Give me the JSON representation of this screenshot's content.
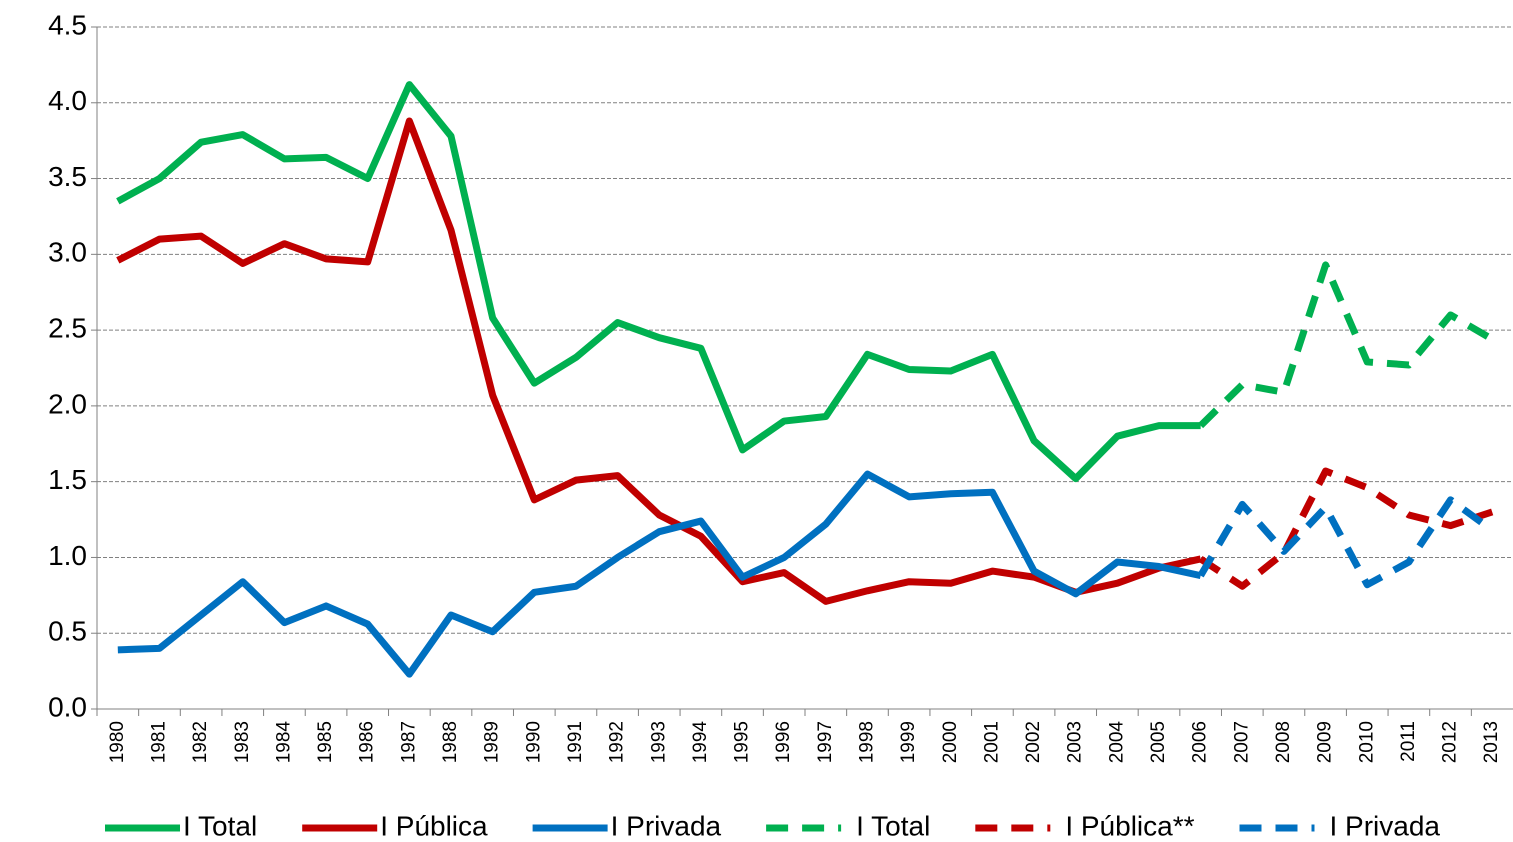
{
  "chart_data": {
    "type": "line",
    "categories": [
      "1980",
      "1981",
      "1982",
      "1983",
      "1984",
      "1985",
      "1986",
      "1987",
      "1988",
      "1989",
      "1990",
      "1991",
      "1992",
      "1993",
      "1994",
      "1995",
      "1996",
      "1997",
      "1998",
      "1999",
      "2000",
      "2001",
      "2002",
      "2003",
      "2004",
      "2005",
      "2006",
      "2007",
      "2008",
      "2009",
      "2010",
      "2011",
      "2012",
      "2013"
    ],
    "series": [
      {
        "name": "I Total",
        "color": "#00b050",
        "style": "solid",
        "values": [
          3.35,
          3.5,
          3.74,
          3.79,
          3.63,
          3.64,
          3.5,
          4.12,
          3.78,
          2.58,
          2.15,
          2.32,
          2.55,
          2.45,
          2.38,
          1.71,
          1.9,
          1.93,
          2.34,
          2.24,
          2.23,
          2.34,
          1.77,
          1.52,
          1.8,
          1.87,
          1.87,
          null,
          null,
          null,
          null,
          null,
          null,
          null
        ]
      },
      {
        "name": "I Pública",
        "color": "#c00000",
        "style": "solid",
        "values": [
          2.96,
          3.1,
          3.12,
          2.94,
          3.07,
          2.97,
          2.95,
          3.88,
          3.16,
          2.07,
          1.38,
          1.51,
          1.54,
          1.28,
          1.14,
          0.84,
          0.9,
          0.71,
          0.78,
          0.84,
          0.83,
          0.91,
          0.87,
          0.77,
          0.83,
          0.93,
          0.99,
          null,
          null,
          null,
          null,
          null,
          null,
          null
        ]
      },
      {
        "name": "I Privada",
        "color": "#0070c0",
        "style": "solid",
        "values": [
          0.39,
          0.4,
          0.62,
          0.84,
          0.57,
          0.68,
          0.56,
          0.23,
          0.62,
          0.51,
          0.77,
          0.81,
          1.0,
          1.17,
          1.24,
          0.87,
          1.0,
          1.22,
          1.55,
          1.4,
          1.42,
          1.43,
          0.91,
          0.76,
          0.97,
          0.94,
          0.88,
          null,
          null,
          null,
          null,
          null,
          null,
          null
        ]
      },
      {
        "name": "I Total",
        "color": "#00b050",
        "style": "dashed",
        "values": [
          null,
          null,
          null,
          null,
          null,
          null,
          null,
          null,
          null,
          null,
          null,
          null,
          null,
          null,
          null,
          null,
          null,
          null,
          null,
          null,
          null,
          null,
          null,
          null,
          null,
          null,
          1.87,
          2.14,
          2.09,
          2.93,
          2.29,
          2.27,
          2.6,
          2.44
        ]
      },
      {
        "name": "I Pública**",
        "color": "#c00000",
        "style": "dashed",
        "values": [
          null,
          null,
          null,
          null,
          null,
          null,
          null,
          null,
          null,
          null,
          null,
          null,
          null,
          null,
          null,
          null,
          null,
          null,
          null,
          null,
          null,
          null,
          null,
          null,
          null,
          null,
          0.99,
          0.81,
          1.03,
          1.57,
          1.46,
          1.28,
          1.21,
          1.3
        ]
      },
      {
        "name": "I Privada",
        "color": "#0070c0",
        "style": "dashed",
        "values": [
          null,
          null,
          null,
          null,
          null,
          null,
          null,
          null,
          null,
          null,
          null,
          null,
          null,
          null,
          null,
          null,
          null,
          null,
          null,
          null,
          null,
          null,
          null,
          null,
          null,
          null,
          0.88,
          1.35,
          1.04,
          1.33,
          0.82,
          0.97,
          1.38,
          1.18
        ]
      }
    ],
    "ylim": [
      0,
      4.5
    ],
    "yticks": [
      {
        "value": 0,
        "label": "0.0"
      },
      0.5,
      {
        "value": 1,
        "label": "1.0"
      },
      1.5,
      {
        "value": 2,
        "label": "2.0"
      },
      2.5,
      {
        "value": 3,
        "label": "3.0"
      },
      3.5,
      {
        "value": 4,
        "label": "4.0"
      },
      4.5
    ],
    "grid": true,
    "legend": "bottom"
  }
}
